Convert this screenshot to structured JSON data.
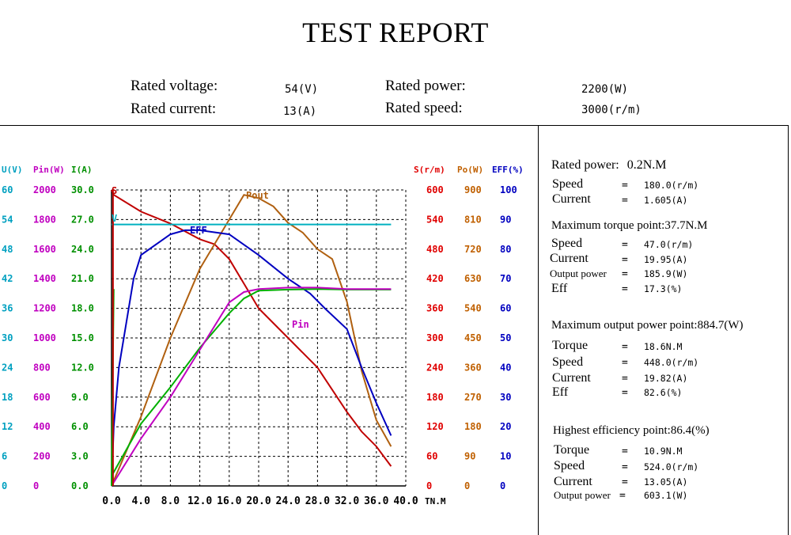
{
  "title": "TEST REPORT",
  "ratings": {
    "voltage_label": "Rated voltage:",
    "voltage_value": "54(V)",
    "current_label": "Rated current:",
    "current_value": "13(A)",
    "power_label": "Rated power:",
    "power_value": "2200(W)",
    "speed_label": "Rated speed:",
    "speed_value": "3000(r/m)"
  },
  "chart_data": {
    "type": "line",
    "x_ticks": [
      "0.0",
      "4.0",
      "8.0",
      "12.0",
      "16.0",
      "20.0",
      "24.0",
      "28.0",
      "32.0",
      "36.0",
      "40.0"
    ],
    "x_unit": "TN.M",
    "left_axes": [
      {
        "header": "U(V)",
        "color": "#00a0c0",
        "ticks": [
          "60",
          "54",
          "48",
          "42",
          "36",
          "30",
          "24",
          "18",
          "12",
          "6",
          "0"
        ]
      },
      {
        "header": "Pin(W)",
        "color": "#c000c0",
        "ticks": [
          "2000",
          "1800",
          "1600",
          "1400",
          "1200",
          "1000",
          "800",
          "600",
          "400",
          "200",
          "0"
        ]
      },
      {
        "header": "I(A)",
        "color": "#009000",
        "ticks": [
          "30.0",
          "27.0",
          "24.0",
          "21.0",
          "18.0",
          "15.0",
          "12.0",
          "9.0",
          "6.0",
          "3.0",
          "0.0"
        ]
      }
    ],
    "right_axes": [
      {
        "header": "S(r/m)",
        "color": "#e00000",
        "ticks": [
          "600",
          "540",
          "480",
          "420",
          "360",
          "300",
          "240",
          "180",
          "120",
          "60",
          "0"
        ]
      },
      {
        "header": "Po(W)",
        "color": "#c06000",
        "ticks": [
          "900",
          "810",
          "720",
          "630",
          "540",
          "450",
          "360",
          "270",
          "180",
          "90",
          "0"
        ]
      },
      {
        "header": "EFF(%)",
        "color": "#0000c0",
        "ticks": [
          "100",
          "90",
          "80",
          "70",
          "60",
          "50",
          "40",
          "30",
          "20",
          "10",
          "0"
        ]
      }
    ],
    "series": [
      {
        "name": "S",
        "color": "#c00000",
        "axis_max": 600,
        "x": [
          0.0,
          0.3,
          4.0,
          8.0,
          12.0,
          14.0,
          16.0,
          18.0,
          20.0,
          24.0,
          28.0,
          32.0,
          34.0,
          36.0,
          38.0
        ],
        "y": [
          600,
          590,
          556,
          532,
          500,
          490,
          460,
          410,
          360,
          300,
          240,
          150,
          110,
          80,
          40
        ]
      },
      {
        "name": "Pout",
        "color": "#b06010",
        "axis_max": 900,
        "x": [
          0.0,
          4.0,
          8.0,
          12.0,
          16.0,
          18.0,
          20.0,
          22.0,
          24.0,
          26.0,
          28.0,
          30.0,
          32.0,
          34.0,
          36.0,
          38.0
        ],
        "y": [
          0,
          210,
          450,
          660,
          810,
          885,
          875,
          850,
          800,
          770,
          720,
          690,
          560,
          350,
          200,
          120
        ]
      },
      {
        "name": "EFF",
        "color": "#0000c0",
        "axis_max": 100,
        "x": [
          0.0,
          0.3,
          1.0,
          2.0,
          3.0,
          4.0,
          8.0,
          10.0,
          12.0,
          16.0,
          20.0,
          24.0,
          27.0,
          29.0,
          32.0,
          34.0,
          36.0,
          38.0
        ],
        "y": [
          0,
          20,
          40,
          55,
          70,
          78,
          85,
          86.4,
          86.4,
          85,
          78,
          70,
          65,
          60,
          53,
          40,
          28,
          17
        ]
      },
      {
        "name": "I",
        "color": "#00b000",
        "axis_max": 30,
        "x": [
          0.0,
          4.0,
          8.0,
          12.0,
          16.0,
          18.0,
          20.0,
          24.0,
          28.0,
          32.0,
          36.0,
          38.0
        ],
        "y": [
          1.0,
          6.3,
          10.0,
          14.0,
          17.5,
          19.0,
          19.8,
          19.9,
          19.95,
          19.9,
          19.9,
          19.9
        ]
      },
      {
        "name": "Pin",
        "color": "#c000c0",
        "axis_max": 2000,
        "x": [
          0.0,
          4.0,
          8.0,
          12.0,
          16.0,
          18.0,
          20.0,
          24.0,
          28.0,
          32.0,
          36.0,
          38.0
        ],
        "y": [
          0,
          320,
          600,
          920,
          1240,
          1310,
          1330,
          1340,
          1340,
          1330,
          1330,
          1330
        ]
      },
      {
        "name": "V",
        "color": "#00b0c0",
        "axis_max": 60,
        "x": [
          0.0,
          38.0
        ],
        "y": [
          53,
          53
        ]
      }
    ],
    "xlim": [
      0,
      40
    ]
  },
  "panel": {
    "rated": {
      "heading": "Rated power:",
      "heading_value": "0.2N.M",
      "rows": [
        {
          "label": "Speed",
          "eq": "=",
          "value": "180.0(r/m)"
        },
        {
          "label": "Current",
          "eq": "=",
          "value": "1.605(A)"
        }
      ]
    },
    "max_torque": {
      "heading": "Maximum torque point:37.7N.M",
      "rows": [
        {
          "label": "Speed",
          "eq": "=",
          "value": "47.0(r/m)"
        },
        {
          "label": "Current",
          "eq": "=",
          "value": "19.95(A)"
        },
        {
          "label": "Output power",
          "eq": "=",
          "value": "185.9(W)"
        },
        {
          "label": "Eff",
          "eq": "=",
          "value": "17.3(%)"
        }
      ]
    },
    "max_output": {
      "heading": "Maximum output power point:884.7(W)",
      "rows": [
        {
          "label": "Torque",
          "eq": "=",
          "value": "18.6N.M"
        },
        {
          "label": "Speed",
          "eq": "=",
          "value": "448.0(r/m)"
        },
        {
          "label": "Current",
          "eq": "=",
          "value": "19.82(A)"
        },
        {
          "label": "Eff",
          "eq": "=",
          "value": "82.6(%)"
        }
      ]
    },
    "high_eff": {
      "heading": "Highest efficiency point:86.4(%)",
      "rows": [
        {
          "label": "Torque",
          "eq": "=",
          "value": "10.9N.M"
        },
        {
          "label": "Speed",
          "eq": "=",
          "value": "524.0(r/m)"
        },
        {
          "label": "Current",
          "eq": "=",
          "value": "13.05(A)"
        },
        {
          "label": "Output power",
          "eq": "=",
          "value": "603.1(W)"
        }
      ]
    }
  }
}
